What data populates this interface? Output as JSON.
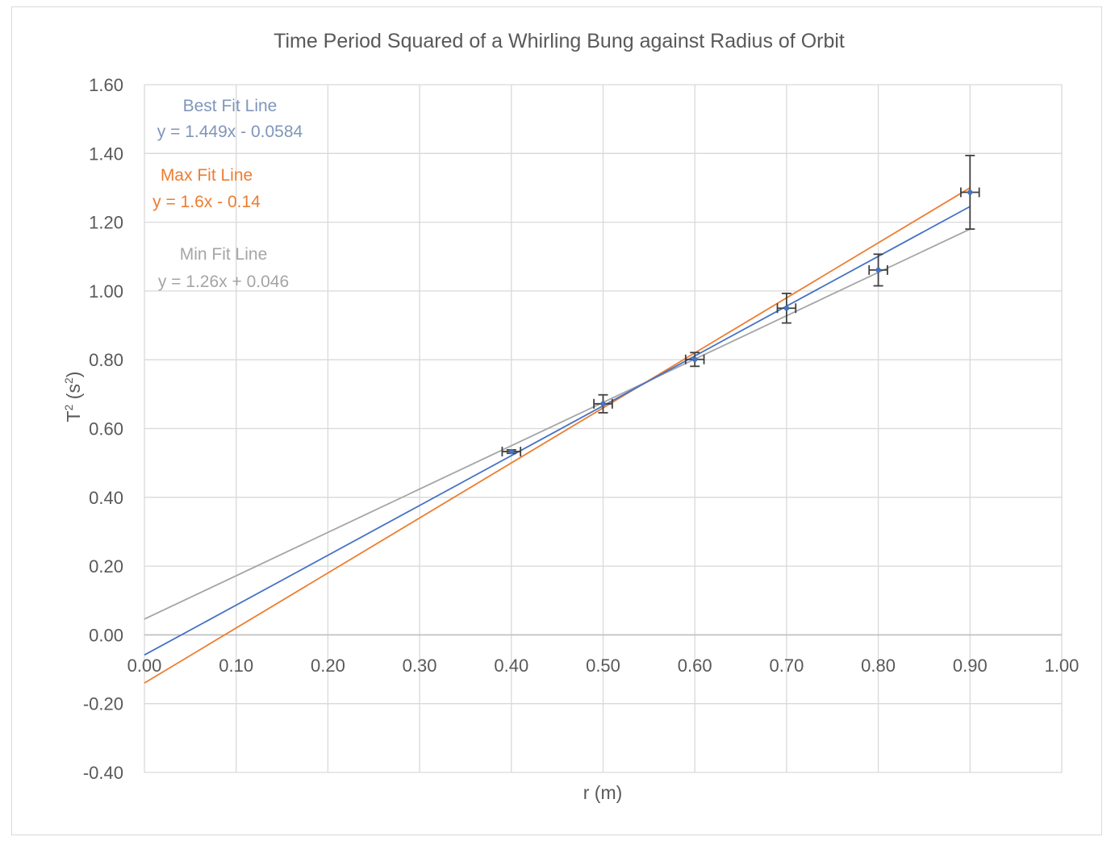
{
  "chart_data": {
    "type": "scatter",
    "title": "Time Period Squared of a Whirling Bung against Radius of Orbit",
    "xlabel": "r (m)",
    "ylabel_main": "T",
    "ylabel_sup1": "2",
    "ylabel_mid": " (s",
    "ylabel_sup2": "2",
    "ylabel_end": ")",
    "xlim": [
      0,
      1.0
    ],
    "ylim": [
      -0.4,
      1.6
    ],
    "x_ticks": [
      "0.00",
      "0.10",
      "0.20",
      "0.30",
      "0.40",
      "0.50",
      "0.60",
      "0.70",
      "0.80",
      "0.90",
      "1.00"
    ],
    "y_ticks": [
      "-0.40",
      "-0.20",
      "0.00",
      "0.20",
      "0.40",
      "0.60",
      "0.80",
      "1.00",
      "1.20",
      "1.40",
      "1.60"
    ],
    "grid": true,
    "points": {
      "x": [
        0.4,
        0.5,
        0.6,
        0.7,
        0.8,
        0.9
      ],
      "y": [
        0.533,
        0.672,
        0.801,
        0.95,
        1.061,
        1.287
      ],
      "y_err": [
        0.005,
        0.026,
        0.02,
        0.043,
        0.046,
        0.107
      ],
      "x_err": [
        0.01,
        0.01,
        0.01,
        0.01,
        0.01,
        0.01
      ],
      "color": "#4472c4"
    },
    "lines": [
      {
        "slope": 1.449,
        "intercept": -0.0584,
        "color": "#4472c4",
        "x_range": [
          0,
          0.9
        ]
      },
      {
        "slope": 1.6,
        "intercept": -0.14,
        "color": "#ed7d31",
        "x_range": [
          0,
          0.9
        ]
      },
      {
        "slope": 1.26,
        "intercept": 0.046,
        "color": "#a5a5a5",
        "x_range": [
          0,
          0.9
        ]
      }
    ],
    "annotations": [
      {
        "text": "Best Fit Line",
        "color": "#7f96b9"
      },
      {
        "text": "y = 1.449x - 0.0584",
        "color": "#7f96b9"
      },
      {
        "text": "Max Fit Line",
        "color": "#ed7d31"
      },
      {
        "text": "y = 1.6x - 0.14",
        "color": "#ed7d31"
      },
      {
        "text": "Min Fit Line",
        "color": "#a5a5a5"
      },
      {
        "text": "y = 1.26x + 0.046",
        "color": "#a5a5a5"
      }
    ],
    "colors": {
      "grid": "#d9d9d9",
      "axis": "#d9d9d9",
      "errorbar": "#404040",
      "text": "#595959"
    }
  }
}
